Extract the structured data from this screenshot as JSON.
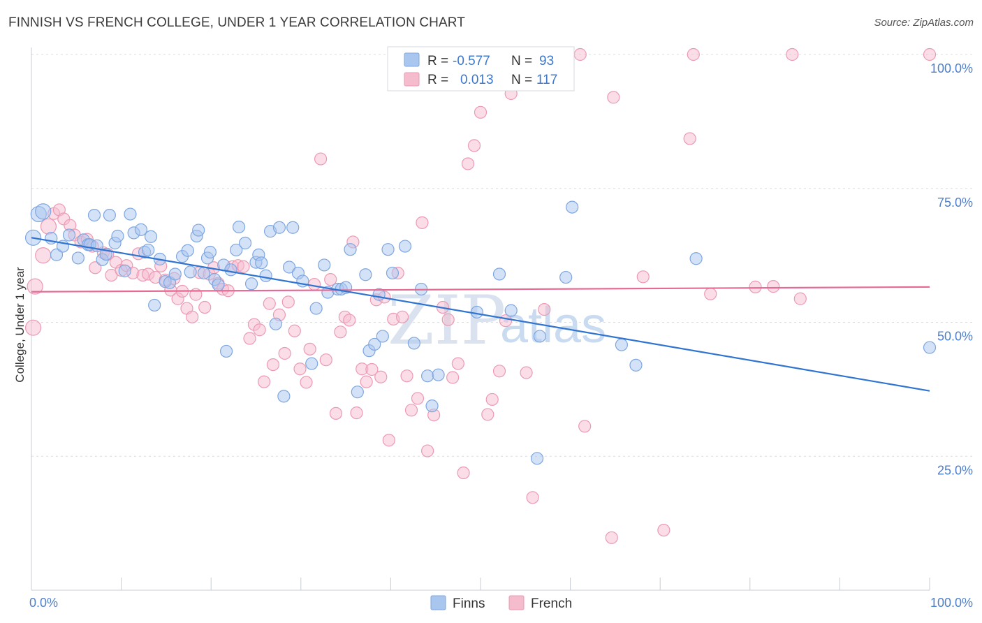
{
  "title": "FINNISH VS FRENCH COLLEGE, UNDER 1 YEAR CORRELATION CHART",
  "source": "Source: ZipAtlas.com",
  "watermark": {
    "zip": "ZIP",
    "atlas": "atlas"
  },
  "legend": {
    "r_label": "R =",
    "n_label": "N =",
    "finns": {
      "r": "-0.577",
      "n": "93"
    },
    "french": {
      "r": "0.013",
      "n": "117"
    }
  },
  "colors": {
    "finns_fill": "#a9c6ef",
    "finns_stroke": "#7ea6e0",
    "finns_line": "#2f74d0",
    "french_fill": "#f5bccd",
    "french_stroke": "#ec9ab3",
    "french_line": "#e56b94",
    "grid": "#d8dde6",
    "tick": "#4f7fc9"
  },
  "chart_data": {
    "type": "scatter",
    "title": "FINNISH VS FRENCH COLLEGE, UNDER 1 YEAR CORRELATION CHART",
    "xlabel": "",
    "ylabel": "College, Under 1 year",
    "xlim": [
      0,
      100
    ],
    "ylim": [
      0,
      100
    ],
    "x_tick_labels": [
      "0.0%",
      "100.0%"
    ],
    "y_ticks": [
      25,
      50,
      75,
      100
    ],
    "y_tick_labels": [
      "25.0%",
      "50.0%",
      "75.0%",
      "100.0%"
    ],
    "grid": true,
    "legend_position": "top-center",
    "series": [
      {
        "name": "Finns",
        "trend": {
          "x": [
            0,
            100
          ],
          "y": [
            65.8,
            37.2
          ]
        },
        "points": [
          [
            0.2,
            65.8
          ],
          [
            0.8,
            70.2
          ],
          [
            1.3,
            70.7
          ],
          [
            2.2,
            65.7
          ],
          [
            2.8,
            62.6
          ],
          [
            3.5,
            64.2
          ],
          [
            4.2,
            66.3
          ],
          [
            5.2,
            62.0
          ],
          [
            5.8,
            65.4
          ],
          [
            6.3,
            64.5
          ],
          [
            6.5,
            64.5
          ],
          [
            7.0,
            70.0
          ],
          [
            7.3,
            64.3
          ],
          [
            7.9,
            61.7
          ],
          [
            8.3,
            62.7
          ],
          [
            8.7,
            70.0
          ],
          [
            9.3,
            64.8
          ],
          [
            9.6,
            66.1
          ],
          [
            10.4,
            59.6
          ],
          [
            11.0,
            70.2
          ],
          [
            11.4,
            66.7
          ],
          [
            12.2,
            67.3
          ],
          [
            12.6,
            63.1
          ],
          [
            13.0,
            63.5
          ],
          [
            13.3,
            66.0
          ],
          [
            13.7,
            53.2
          ],
          [
            14.3,
            61.8
          ],
          [
            14.9,
            57.6
          ],
          [
            15.4,
            57.4
          ],
          [
            16.0,
            59.0
          ],
          [
            16.8,
            62.3
          ],
          [
            17.4,
            63.4
          ],
          [
            17.7,
            59.4
          ],
          [
            18.4,
            66.1
          ],
          [
            18.6,
            67.2
          ],
          [
            19.2,
            59.2
          ],
          [
            19.6,
            62.0
          ],
          [
            19.9,
            63.1
          ],
          [
            20.4,
            58.0
          ],
          [
            20.8,
            57.0
          ],
          [
            21.4,
            60.7
          ],
          [
            21.7,
            44.6
          ],
          [
            22.2,
            59.8
          ],
          [
            22.8,
            63.5
          ],
          [
            23.1,
            67.8
          ],
          [
            23.8,
            64.8
          ],
          [
            24.5,
            57.2
          ],
          [
            25.0,
            61.2
          ],
          [
            25.3,
            62.6
          ],
          [
            25.6,
            61.1
          ],
          [
            26.1,
            58.7
          ],
          [
            26.6,
            67.0
          ],
          [
            27.2,
            49.7
          ],
          [
            27.6,
            67.7
          ],
          [
            28.1,
            36.2
          ],
          [
            28.7,
            60.3
          ],
          [
            29.1,
            67.7
          ],
          [
            29.7,
            59.2
          ],
          [
            30.2,
            57.7
          ],
          [
            31.2,
            42.3
          ],
          [
            31.7,
            52.6
          ],
          [
            32.6,
            60.7
          ],
          [
            33.0,
            55.6
          ],
          [
            34.1,
            56.2
          ],
          [
            34.5,
            56.2
          ],
          [
            35.0,
            56.5
          ],
          [
            35.5,
            63.6
          ],
          [
            36.3,
            37.0
          ],
          [
            37.2,
            58.9
          ],
          [
            37.6,
            44.7
          ],
          [
            38.2,
            45.9
          ],
          [
            38.7,
            55.2
          ],
          [
            39.1,
            47.4
          ],
          [
            39.7,
            63.6
          ],
          [
            40.2,
            59.2
          ],
          [
            41.6,
            64.2
          ],
          [
            42.6,
            46.1
          ],
          [
            43.4,
            56.2
          ],
          [
            44.1,
            40.0
          ],
          [
            44.6,
            34.4
          ],
          [
            45.3,
            40.2
          ],
          [
            49.6,
            51.9
          ],
          [
            52.1,
            59.0
          ],
          [
            53.4,
            52.2
          ],
          [
            56.3,
            24.6
          ],
          [
            56.6,
            47.4
          ],
          [
            59.5,
            58.4
          ],
          [
            60.2,
            71.5
          ],
          [
            65.7,
            45.8
          ],
          [
            67.3,
            42.0
          ],
          [
            74.0,
            61.9
          ],
          [
            100,
            45.3
          ]
        ]
      },
      {
        "name": "French",
        "trend": {
          "x": [
            0,
            100
          ],
          "y": [
            55.7,
            56.6
          ]
        },
        "points": [
          [
            0.2,
            49.0
          ],
          [
            0.4,
            56.7
          ],
          [
            1.3,
            62.5
          ],
          [
            1.9,
            67.9
          ],
          [
            2.5,
            70.3
          ],
          [
            3.1,
            71.0
          ],
          [
            3.6,
            69.3
          ],
          [
            4.3,
            68.1
          ],
          [
            4.8,
            66.3
          ],
          [
            5.5,
            65.0
          ],
          [
            6.2,
            65.5
          ],
          [
            6.8,
            64.2
          ],
          [
            7.1,
            60.2
          ],
          [
            8.0,
            63.0
          ],
          [
            8.5,
            62.7
          ],
          [
            8.9,
            58.8
          ],
          [
            9.4,
            61.2
          ],
          [
            10.0,
            59.7
          ],
          [
            10.6,
            60.6
          ],
          [
            11.3,
            59.2
          ],
          [
            11.9,
            62.8
          ],
          [
            12.4,
            58.8
          ],
          [
            13.0,
            59.0
          ],
          [
            13.8,
            58.4
          ],
          [
            14.4,
            60.5
          ],
          [
            14.9,
            57.9
          ],
          [
            15.5,
            56.0
          ],
          [
            15.9,
            58.2
          ],
          [
            16.3,
            54.4
          ],
          [
            16.8,
            55.8
          ],
          [
            17.3,
            52.6
          ],
          [
            17.9,
            51.0
          ],
          [
            18.3,
            55.2
          ],
          [
            18.7,
            59.3
          ],
          [
            19.3,
            52.8
          ],
          [
            19.8,
            59.0
          ],
          [
            20.3,
            60.2
          ],
          [
            20.8,
            57.3
          ],
          [
            21.3,
            56.2
          ],
          [
            21.9,
            55.9
          ],
          [
            22.4,
            60.4
          ],
          [
            23.0,
            60.6
          ],
          [
            23.6,
            60.4
          ],
          [
            24.3,
            47.0
          ],
          [
            24.8,
            49.6
          ],
          [
            25.4,
            48.6
          ],
          [
            25.9,
            38.9
          ],
          [
            26.5,
            53.5
          ],
          [
            26.9,
            42.1
          ],
          [
            27.6,
            51.4
          ],
          [
            28.2,
            44.2
          ],
          [
            28.6,
            53.8
          ],
          [
            29.3,
            48.4
          ],
          [
            29.9,
            41.3
          ],
          [
            30.6,
            38.8
          ],
          [
            31.0,
            45.0
          ],
          [
            31.5,
            57.1
          ],
          [
            32.2,
            80.5
          ],
          [
            32.8,
            43.0
          ],
          [
            33.3,
            58.0
          ],
          [
            33.9,
            33.0
          ],
          [
            34.4,
            48.2
          ],
          [
            34.9,
            51.0
          ],
          [
            35.4,
            50.4
          ],
          [
            35.8,
            65.0
          ],
          [
            36.2,
            33.1
          ],
          [
            36.8,
            41.3
          ],
          [
            37.3,
            38.9
          ],
          [
            37.9,
            41.2
          ],
          [
            38.4,
            54.2
          ],
          [
            38.9,
            39.8
          ],
          [
            39.3,
            54.7
          ],
          [
            39.8,
            28.0
          ],
          [
            40.3,
            50.6
          ],
          [
            40.8,
            59.2
          ],
          [
            41.3,
            51.0
          ],
          [
            41.8,
            40.0
          ],
          [
            42.3,
            33.6
          ],
          [
            43.0,
            35.8
          ],
          [
            43.5,
            68.6
          ],
          [
            44.1,
            26.0
          ],
          [
            44.8,
            32.7
          ],
          [
            45.8,
            52.8
          ],
          [
            46.4,
            50.5
          ],
          [
            46.9,
            39.7
          ],
          [
            47.5,
            42.3
          ],
          [
            48.1,
            21.9
          ],
          [
            48.6,
            79.6
          ],
          [
            49.3,
            83.0
          ],
          [
            50.0,
            89.2
          ],
          [
            50.8,
            32.8
          ],
          [
            51.3,
            35.6
          ],
          [
            52.1,
            40.9
          ],
          [
            52.8,
            50.3
          ],
          [
            53.4,
            92.7
          ],
          [
            54.0,
            100
          ],
          [
            55.1,
            40.6
          ],
          [
            55.8,
            17.3
          ],
          [
            57.1,
            52.4
          ],
          [
            61.1,
            100
          ],
          [
            61.6,
            30.6
          ],
          [
            64.6,
            9.8
          ],
          [
            64.8,
            92.0
          ],
          [
            68.1,
            58.5
          ],
          [
            70.4,
            11.2
          ],
          [
            73.3,
            84.3
          ],
          [
            73.7,
            100
          ],
          [
            75.6,
            55.3
          ],
          [
            80.6,
            56.6
          ],
          [
            82.6,
            56.7
          ],
          [
            84.7,
            100
          ],
          [
            85.6,
            54.4
          ],
          [
            100,
            100
          ]
        ]
      }
    ]
  },
  "bottom_legend": {
    "finns": "Finns",
    "french": "French"
  }
}
